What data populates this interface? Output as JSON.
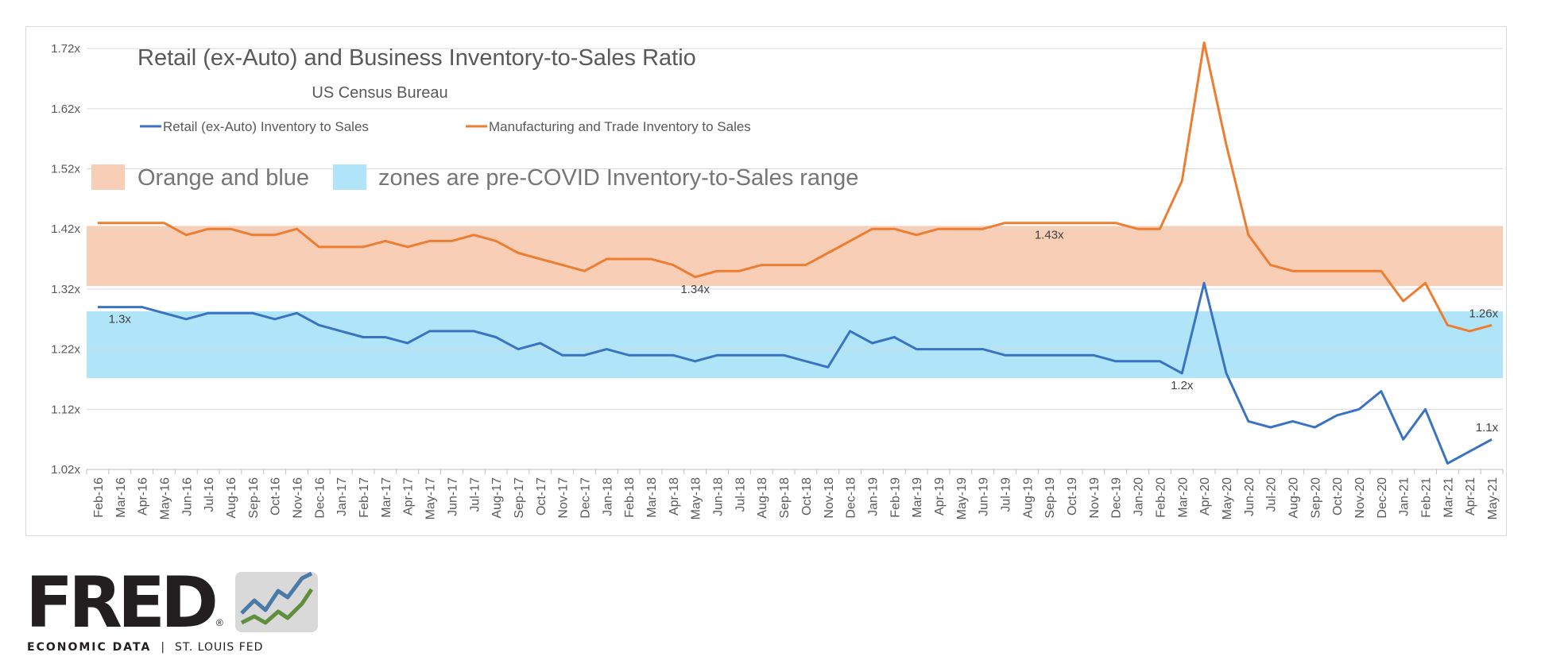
{
  "chart_data": {
    "type": "line",
    "title": "Retail (ex-Auto) and Business Inventory-to-Sales Ratio",
    "subtitle": "US Census Bureau",
    "zone_note_left": "Orange and blue",
    "zone_note_right": "zones are pre-COVID Inventory-to-Sales range",
    "ylim": [
      1.02,
      1.74
    ],
    "yticks": [
      1.02,
      1.12,
      1.22,
      1.32,
      1.42,
      1.52,
      1.62,
      1.72
    ],
    "ytick_labels": [
      "1.02x",
      "1.12x",
      "1.22x",
      "1.32x",
      "1.42x",
      "1.52x",
      "1.62x",
      "1.72x"
    ],
    "grid": true,
    "legend_position": "top-left",
    "x": [
      "Feb-16",
      "Mar-16",
      "Apr-16",
      "May-16",
      "Jun-16",
      "Jul-16",
      "Aug-16",
      "Sep-16",
      "Oct-16",
      "Nov-16",
      "Dec-16",
      "Jan-17",
      "Feb-17",
      "Mar-17",
      "Apr-17",
      "May-17",
      "Jun-17",
      "Jul-17",
      "Aug-17",
      "Sep-17",
      "Oct-17",
      "Nov-17",
      "Dec-17",
      "Jan-18",
      "Feb-18",
      "Mar-18",
      "Apr-18",
      "May-18",
      "Jun-18",
      "Jul-18",
      "Aug-18",
      "Sep-18",
      "Oct-18",
      "Nov-18",
      "Dec-18",
      "Jan-19",
      "Feb-19",
      "Mar-19",
      "Apr-19",
      "May-19",
      "Jun-19",
      "Jul-19",
      "Aug-19",
      "Sep-19",
      "Oct-19",
      "Nov-19",
      "Dec-19",
      "Jan-20",
      "Feb-20",
      "Mar-20",
      "Apr-20",
      "May-20",
      "Jun-20",
      "Jul-20",
      "Aug-20",
      "Sep-20",
      "Oct-20",
      "Nov-20",
      "Dec-20",
      "Jan-21",
      "Feb-21",
      "Mar-21",
      "Apr-21",
      "May-21"
    ],
    "zones": [
      {
        "color": "#f8cfb6",
        "range": [
          1.325,
          1.425
        ]
      },
      {
        "color": "#b0e4f8",
        "range": [
          1.172,
          1.283
        ]
      }
    ],
    "series": [
      {
        "name": "Retail (ex-Auto) Inventory to Sales",
        "color": "#3b73c3",
        "values": [
          1.29,
          1.29,
          1.29,
          1.28,
          1.27,
          1.28,
          1.28,
          1.28,
          1.27,
          1.28,
          1.26,
          1.25,
          1.24,
          1.24,
          1.23,
          1.25,
          1.25,
          1.25,
          1.24,
          1.22,
          1.23,
          1.21,
          1.21,
          1.22,
          1.21,
          1.21,
          1.21,
          1.2,
          1.21,
          1.21,
          1.21,
          1.21,
          1.2,
          1.19,
          1.25,
          1.23,
          1.24,
          1.22,
          1.22,
          1.22,
          1.22,
          1.21,
          1.21,
          1.21,
          1.21,
          1.21,
          1.2,
          1.2,
          1.2,
          1.18,
          1.33,
          1.18,
          1.1,
          1.09,
          1.1,
          1.09,
          1.11,
          1.12,
          1.15,
          1.07,
          1.12,
          1.03,
          1.05,
          1.07
        ]
      },
      {
        "name": "Manufacturing and Trade Inventory to Sales",
        "color": "#ed7d31",
        "values": [
          1.43,
          1.43,
          1.43,
          1.43,
          1.41,
          1.42,
          1.42,
          1.41,
          1.41,
          1.42,
          1.39,
          1.39,
          1.39,
          1.4,
          1.39,
          1.4,
          1.4,
          1.41,
          1.4,
          1.38,
          1.37,
          1.36,
          1.35,
          1.37,
          1.37,
          1.37,
          1.36,
          1.34,
          1.35,
          1.35,
          1.36,
          1.36,
          1.36,
          1.38,
          1.4,
          1.42,
          1.42,
          1.41,
          1.42,
          1.42,
          1.42,
          1.43,
          1.43,
          1.43,
          1.43,
          1.43,
          1.43,
          1.42,
          1.42,
          1.5,
          1.73,
          1.56,
          1.41,
          1.36,
          1.35,
          1.35,
          1.35,
          1.35,
          1.35,
          1.3,
          1.33,
          1.26,
          1.25,
          1.26
        ]
      }
    ],
    "annotations": [
      {
        "text": "1.3x",
        "series": 0,
        "index": 1,
        "pos": "below"
      },
      {
        "text": "1.34x",
        "series": 1,
        "index": 27,
        "pos": "below"
      },
      {
        "text": "1.43x",
        "series": 1,
        "index": 43,
        "pos": "below"
      },
      {
        "text": "1.2x",
        "series": 0,
        "index": 49,
        "pos": "below"
      },
      {
        "text": "1.26x",
        "series": 1,
        "index": 63,
        "pos": "above"
      },
      {
        "text": "1.1x",
        "series": 0,
        "index": 63,
        "pos": "above"
      }
    ]
  },
  "logo": {
    "wordmark": "FRED",
    "registered": "®",
    "tagline_left": "ECONOMIC DATA",
    "tagline_separator": "|",
    "tagline_right": "ST. LOUIS FED"
  }
}
